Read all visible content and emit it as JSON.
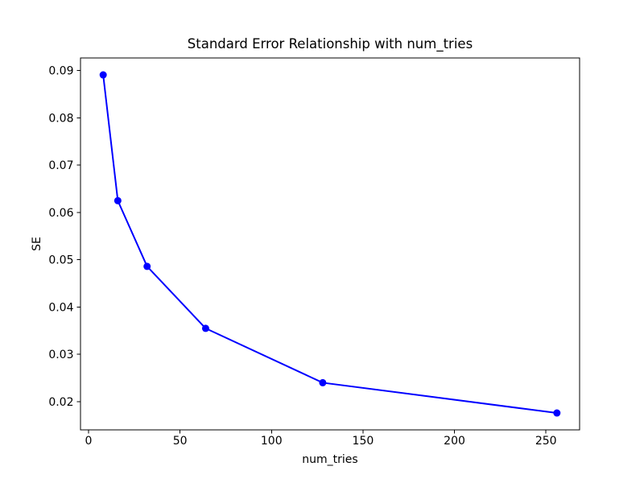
{
  "chart_data": {
    "type": "line",
    "title": "Standard Error Relationship with num_tries",
    "xlabel": "num_tries",
    "ylabel": "SE",
    "x": [
      8,
      16,
      32,
      64,
      128,
      256
    ],
    "y": [
      0.0891,
      0.0625,
      0.0486,
      0.0355,
      0.024,
      0.0176
    ],
    "xlim": [
      -4.4,
      268.4
    ],
    "ylim": [
      0.01403,
      0.09268
    ],
    "xtick_values": [
      0,
      50,
      100,
      150,
      200,
      250
    ],
    "xtick_labels": [
      "0",
      "50",
      "100",
      "150",
      "200",
      "250"
    ],
    "ytick_values": [
      0.02,
      0.03,
      0.04,
      0.05,
      0.06,
      0.07,
      0.08,
      0.09
    ],
    "ytick_labels": [
      "0.02",
      "0.03",
      "0.04",
      "0.05",
      "0.06",
      "0.07",
      "0.08",
      "0.09"
    ],
    "line_color": "#0000ff",
    "marker": "circle",
    "marker_color": "#0000ff",
    "axes_color": "#000000",
    "background": "#ffffff",
    "grid": false,
    "legend": "none"
  }
}
